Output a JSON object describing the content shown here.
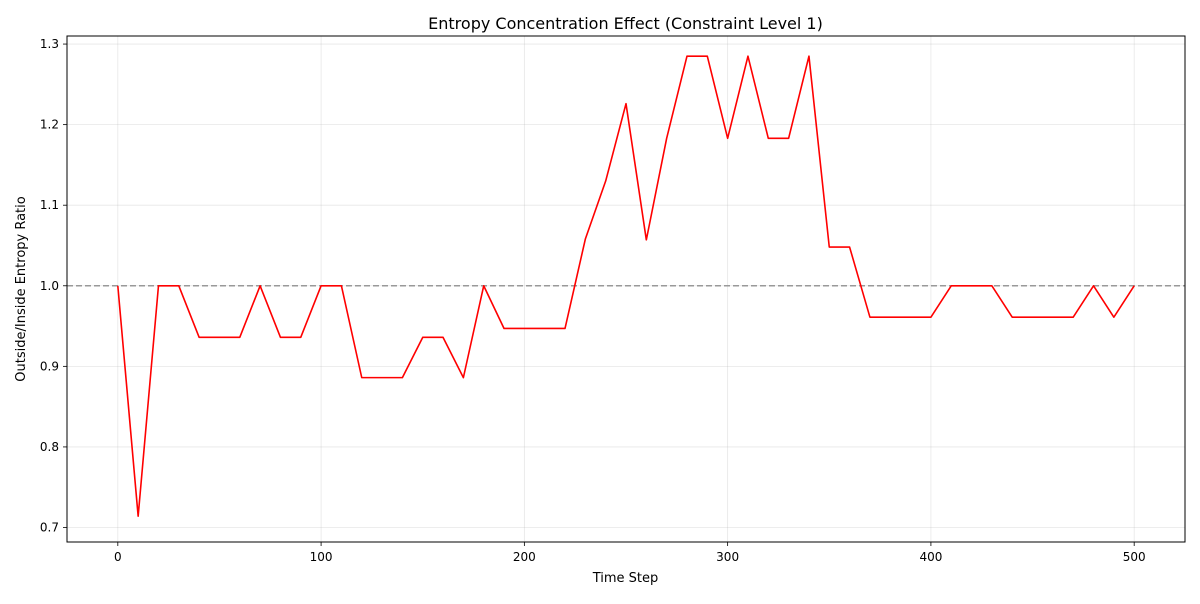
{
  "chart_data": {
    "type": "line",
    "title": "Entropy Concentration Effect (Constraint Level 1)",
    "xlabel": "Time Step",
    "ylabel": "Outside/Inside Entropy Ratio",
    "xlim": [
      -25,
      525
    ],
    "ylim": [
      0.682,
      1.31
    ],
    "xticks": [
      0,
      100,
      200,
      300,
      400,
      500
    ],
    "yticks": [
      0.7,
      0.8,
      0.9,
      1.0,
      1.1,
      1.2,
      1.3
    ],
    "ytick_labels": [
      "0.7",
      "0.8",
      "0.9",
      "1.0",
      "1.1",
      "1.2",
      "1.3"
    ],
    "grid": true,
    "series": [
      {
        "color": "#ff0000",
        "x": [
          0,
          10,
          20,
          30,
          40,
          50,
          60,
          70,
          80,
          90,
          100,
          110,
          120,
          130,
          140,
          150,
          160,
          170,
          180,
          190,
          200,
          210,
          220,
          230,
          240,
          250,
          260,
          270,
          280,
          290,
          300,
          310,
          320,
          330,
          340,
          350,
          360,
          370,
          380,
          390,
          400,
          410,
          420,
          430,
          440,
          450,
          460,
          470,
          480,
          490,
          500
        ],
        "y": [
          1.0,
          0.714,
          1.0,
          1.0,
          0.936,
          0.936,
          0.936,
          1.0,
          0.936,
          0.936,
          1.0,
          1.0,
          0.886,
          0.886,
          0.886,
          0.936,
          0.936,
          0.886,
          1.0,
          0.947,
          0.947,
          0.947,
          0.947,
          1.058,
          1.13,
          1.226,
          1.057,
          1.183,
          1.285,
          1.285,
          1.183,
          1.285,
          1.183,
          1.183,
          1.285,
          1.048,
          1.048,
          0.961,
          0.961,
          0.961,
          0.961,
          1.0,
          1.0,
          1.0,
          0.961,
          0.961,
          0.961,
          0.961,
          1.0,
          0.961,
          1.0
        ]
      }
    ],
    "reference_line": {
      "y": 1.0,
      "color": "#999999",
      "style": "dashed"
    }
  }
}
